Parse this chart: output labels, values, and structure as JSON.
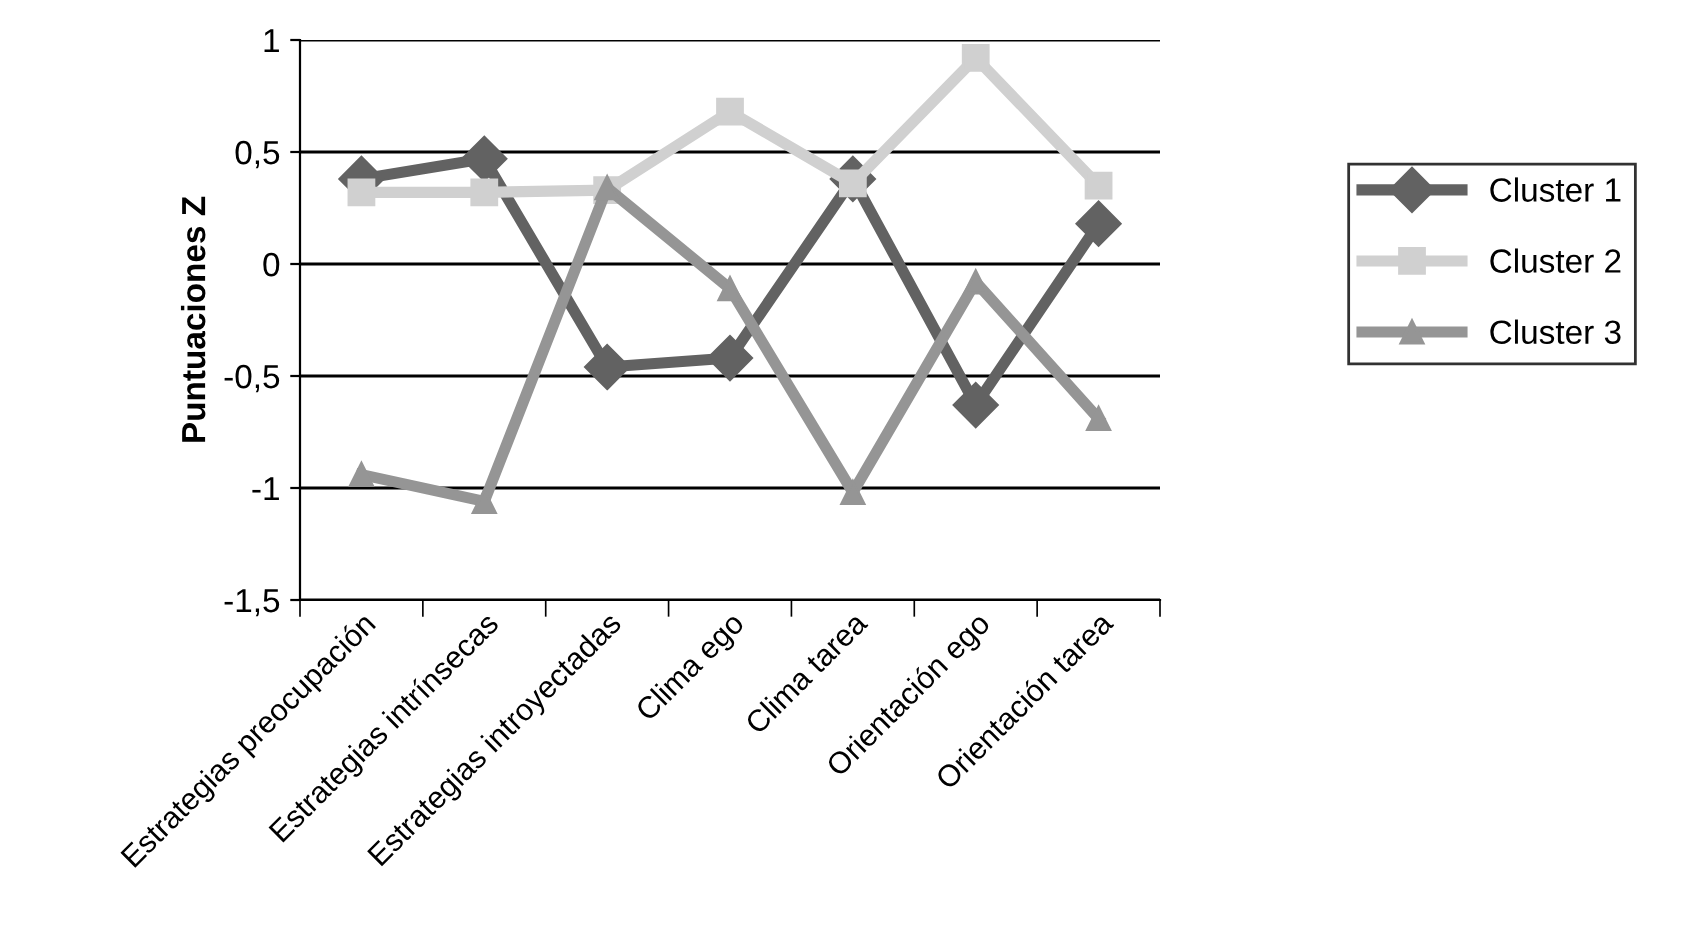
{
  "chart_data": {
    "type": "line",
    "ylabel": "Puntuaciones Z",
    "categories": [
      "Estrategias preocupación",
      "Estrategias intrínsecas",
      "Estrategias introyectadas",
      "Clima ego",
      "Clima tarea",
      "Orientación ego",
      "Orientación tarea"
    ],
    "series": [
      {
        "name": "Cluster 1",
        "color": "#626262",
        "marker": "diamond",
        "values": [
          0.38,
          0.47,
          -0.46,
          -0.42,
          0.38,
          -0.63,
          0.18
        ]
      },
      {
        "name": "Cluster 2",
        "color": "#d0d0d0",
        "marker": "square",
        "values": [
          0.32,
          0.32,
          0.33,
          0.68,
          0.36,
          0.92,
          0.35
        ]
      },
      {
        "name": "Cluster 3",
        "color": "#959595",
        "marker": "triangle",
        "values": [
          -0.94,
          -1.06,
          0.34,
          -0.11,
          -1.02,
          -0.08,
          -0.69
        ]
      }
    ],
    "ylim": [
      -1.5,
      1
    ],
    "yticks": [
      {
        "value": -1.5,
        "label": "-1,5"
      },
      -1,
      {
        "value": -0.5,
        "label": "-0,5"
      },
      0,
      {
        "value": 0.5,
        "label": "0,5"
      },
      1
    ],
    "grid": "y",
    "legend": "right",
    "line_style": "solid"
  }
}
